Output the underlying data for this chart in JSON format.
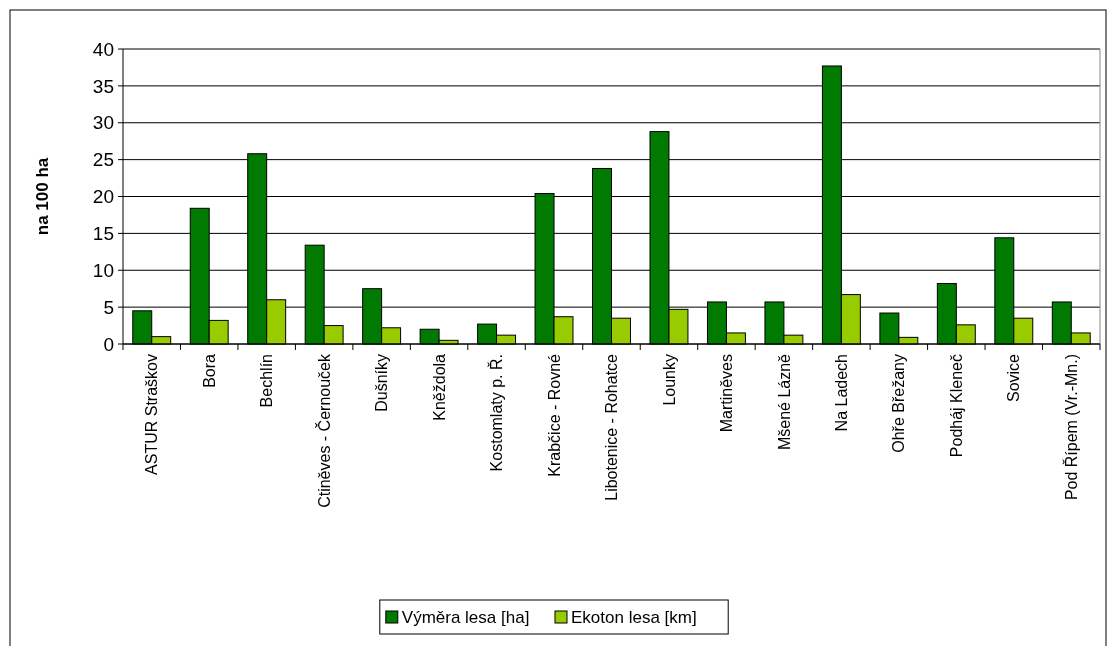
{
  "chart_data": {
    "type": "bar",
    "ylabel": "na 100 ha",
    "categories": [
      "ASTUR Straškov",
      "Bora",
      "Bechlín",
      "Ctiněves - Černouček",
      "Dušníky",
      "Kněždola",
      "Kostomlaty p. Ř.",
      "Krabčice - Rovné",
      "Libotenice - Rohatce",
      "Lounky",
      "Martiněves",
      "Mšené Lázně",
      "Na Ladech",
      "Ohře Břežany",
      "Podháj Kleneč",
      "Sovice",
      "Pod Řípem (Vr.-Mn.)"
    ],
    "series": [
      {
        "name": "Výměra lesa [ha]",
        "color": "#007a00",
        "values": [
          4.5,
          18.4,
          25.8,
          13.4,
          7.5,
          2.0,
          2.7,
          20.4,
          23.8,
          28.8,
          5.7,
          5.7,
          37.7,
          4.2,
          8.2,
          14.4,
          5.7
        ]
      },
      {
        "name": "Ekoton lesa [km]",
        "color": "#99cc00",
        "values": [
          1.0,
          3.2,
          6.0,
          2.5,
          2.2,
          0.5,
          1.2,
          3.7,
          3.5,
          4.7,
          1.5,
          1.2,
          6.7,
          0.9,
          2.6,
          3.5,
          1.5
        ]
      }
    ],
    "ylim": [
      0,
      40
    ],
    "yticks": [
      0,
      5,
      10,
      15,
      20,
      25,
      30,
      35,
      40
    ],
    "grid": "y",
    "legend": "bottom"
  }
}
